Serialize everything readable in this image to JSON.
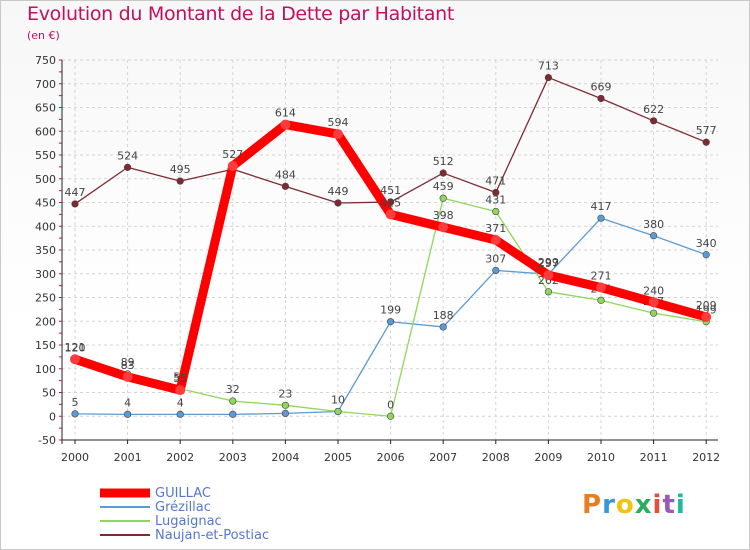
{
  "header": {
    "title": "Evolution du Montant de la Dette par Habitant",
    "subtitle": "(en €)"
  },
  "logo": {
    "letters": [
      "P",
      "r",
      "o",
      "x",
      "i",
      "t",
      "i"
    ],
    "colors": [
      "#e67e22",
      "#3498db",
      "#f1c40f",
      "#27ae60",
      "#e74c3c",
      "#9b59b6",
      "#1abc9c"
    ]
  },
  "chart_data": {
    "type": "line",
    "title": "Evolution du Montant de la Dette par Habitant",
    "subtitle": "(en €)",
    "x": [
      "2000",
      "2001",
      "2002",
      "2003",
      "2004",
      "2005",
      "2006",
      "2007",
      "2008",
      "2009",
      "2010",
      "2011",
      "2012"
    ],
    "ylim": [
      -50,
      750
    ],
    "yticks": [
      -50,
      0,
      50,
      100,
      150,
      200,
      250,
      300,
      350,
      400,
      450,
      500,
      550,
      600,
      650,
      700,
      750
    ],
    "grid": true,
    "legend": "bottom-left",
    "series": [
      {
        "name": "Naujan-et-Postiac",
        "color": "#7f2a33",
        "values": [
          447,
          524,
          495,
          520,
          484,
          449,
          451,
          512,
          471,
          713,
          669,
          622,
          577
        ],
        "labels": [
          "447",
          "524",
          "495",
          "",
          "484",
          "449",
          "451",
          "512",
          "471",
          "713",
          "669",
          "622",
          "577"
        ]
      },
      {
        "name": "Grézillac",
        "color": "#5b9bd5",
        "values": [
          5,
          4,
          4,
          4,
          6,
          10,
          199,
          188,
          307,
          299,
          417,
          380,
          340
        ],
        "labels": [
          "5",
          "4",
          "4",
          "",
          "",
          "10",
          "199",
          "188",
          "307",
          "299",
          "417",
          "380",
          "340"
        ]
      },
      {
        "name": "Lugaignac",
        "color": "#8fd65a",
        "values": [
          121,
          89,
          58,
          32,
          23,
          10,
          0,
          459,
          431,
          262,
          244,
          217,
          199
        ],
        "labels": [
          "121",
          "89",
          "58",
          "32",
          "23",
          "",
          "0",
          "459",
          "431",
          "262",
          "244",
          "217",
          "199"
        ]
      },
      {
        "name": "GUILLAC",
        "color": "#ff0000",
        "values": [
          120,
          83,
          55,
          527,
          614,
          594,
          425,
          398,
          371,
          297,
          271,
          240,
          209
        ],
        "labels": [
          "120",
          "83",
          "55",
          "527",
          "614",
          "594",
          "425",
          "398",
          "371",
          "297",
          "271",
          "240",
          "209"
        ]
      }
    ]
  },
  "legend_items": [
    {
      "name": "GUILLAC",
      "color": "#ff0000",
      "width": 9
    },
    {
      "name": "Grézillac",
      "color": "#5b9bd5",
      "width": 2
    },
    {
      "name": "Lugaignac",
      "color": "#8fd65a",
      "width": 2
    },
    {
      "name": "Naujan-et-Postiac",
      "color": "#7f2a33",
      "width": 2
    }
  ]
}
